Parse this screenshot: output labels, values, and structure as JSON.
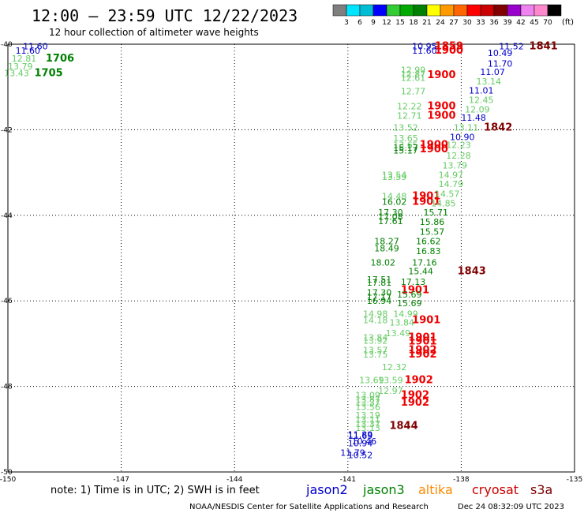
{
  "header": {
    "title": "12:00 — 23:59 UTC 12/22/2023",
    "subtitle": "12 hour collection of altimeter wave heights"
  },
  "scale": {
    "unit": "(ft)",
    "ticks": [
      "3",
      "6",
      "9",
      "12",
      "15",
      "18",
      "21",
      "24",
      "27",
      "30",
      "33",
      "36",
      "39",
      "42",
      "45",
      "70"
    ],
    "colors": [
      "#7f7f7f",
      "#00e5ff",
      "#00bcd4",
      "#0000ff",
      "#33cc33",
      "#00aa00",
      "#008000",
      "#ffff00",
      "#ff9900",
      "#ff6600",
      "#ff0000",
      "#cc0000",
      "#800000",
      "#9900cc",
      "#ee82ee",
      "#ff88cc",
      "#000000"
    ]
  },
  "footer": {
    "note": "note: 1) Time is in UTC; 2) SWH is in feet",
    "credit": "NOAA/NESDIS Center for Satellite Applications and Research",
    "timestamp": "Dec 24 08:32:09 UTC 2023"
  },
  "legend": [
    {
      "name": "jason2",
      "color": "#0000cc"
    },
    {
      "name": "jason3",
      "color": "#008000"
    },
    {
      "name": "altika",
      "color": "#ff8800"
    },
    {
      "name": "cryosat",
      "color": "#cc0000"
    },
    {
      "name": "s3a",
      "color": "#800000"
    }
  ],
  "chart_data": {
    "type": "scatter",
    "xlim": [
      -150,
      -135
    ],
    "ylim": [
      -50,
      -40
    ],
    "x_ticks": [
      "-150",
      "-147",
      "-144",
      "-141",
      "-138",
      "-135"
    ],
    "y_ticks": [
      "-40",
      "-42",
      "-44",
      "-46",
      "-48",
      "-50"
    ],
    "grid": true,
    "labels": [
      {
        "x": -149.6,
        "y": -40.05,
        "text": "11.60",
        "color": "#0000cc",
        "size": "s"
      },
      {
        "x": -149.8,
        "y": -40.15,
        "text": "11.60",
        "color": "#0000cc",
        "size": "s"
      },
      {
        "x": -149.9,
        "y": -40.33,
        "text": "12.81",
        "color": "#66cc66",
        "size": "s"
      },
      {
        "x": -149.0,
        "y": -40.33,
        "text": "1706",
        "color": "#008000",
        "size": "b"
      },
      {
        "x": -150.0,
        "y": -40.52,
        "text": "13.79",
        "color": "#66cc66",
        "size": "s"
      },
      {
        "x": -150.1,
        "y": -40.67,
        "text": "13.43",
        "color": "#66cc66",
        "size": "s"
      },
      {
        "x": -149.3,
        "y": -40.67,
        "text": "1705",
        "color": "#008000",
        "size": "b"
      },
      {
        "x": -139.3,
        "y": -40.05,
        "text": "10.95",
        "color": "#0000cc",
        "size": "s"
      },
      {
        "x": -138.7,
        "y": -40.05,
        "text": "1859",
        "color": "#ee0000",
        "size": "b"
      },
      {
        "x": -139.3,
        "y": -40.15,
        "text": "11.60",
        "color": "#0000cc",
        "size": "s"
      },
      {
        "x": -138.7,
        "y": -40.15,
        "text": "1900",
        "color": "#ee0000",
        "size": "b"
      },
      {
        "x": -137.0,
        "y": -40.05,
        "text": "11.52",
        "color": "#0000cc",
        "size": "s"
      },
      {
        "x": -136.2,
        "y": -40.05,
        "text": "1841",
        "color": "#800000",
        "size": "b"
      },
      {
        "x": -137.3,
        "y": -40.2,
        "text": "10.49",
        "color": "#0000cc",
        "size": "s"
      },
      {
        "x": -137.3,
        "y": -40.45,
        "text": "11.70",
        "color": "#0000cc",
        "size": "s"
      },
      {
        "x": -137.5,
        "y": -40.65,
        "text": "11.07",
        "color": "#0000cc",
        "size": "s"
      },
      {
        "x": -139.6,
        "y": -40.6,
        "text": "12.99",
        "color": "#66cc66",
        "size": "s"
      },
      {
        "x": -139.6,
        "y": -40.7,
        "text": "12.87",
        "color": "#66cc66",
        "size": "s"
      },
      {
        "x": -139.6,
        "y": -40.78,
        "text": "12.61",
        "color": "#66cc66",
        "size": "s"
      },
      {
        "x": -138.9,
        "y": -40.72,
        "text": "1900",
        "color": "#ee0000",
        "size": "b"
      },
      {
        "x": -137.6,
        "y": -40.87,
        "text": "13.14",
        "color": "#66cc66",
        "size": "s"
      },
      {
        "x": -139.6,
        "y": -41.1,
        "text": "12.77",
        "color": "#66cc66",
        "size": "s"
      },
      {
        "x": -137.8,
        "y": -41.08,
        "text": "11.01",
        "color": "#0000cc",
        "size": "s"
      },
      {
        "x": -137.8,
        "y": -41.3,
        "text": "12.45",
        "color": "#66cc66",
        "size": "s"
      },
      {
        "x": -139.7,
        "y": -41.45,
        "text": "12.22",
        "color": "#66cc66",
        "size": "s"
      },
      {
        "x": -138.9,
        "y": -41.45,
        "text": "1900",
        "color": "#ee0000",
        "size": "b"
      },
      {
        "x": -137.9,
        "y": -41.52,
        "text": "12.09",
        "color": "#66cc66",
        "size": "s"
      },
      {
        "x": -139.7,
        "y": -41.67,
        "text": "12.71",
        "color": "#66cc66",
        "size": "s"
      },
      {
        "x": -138.9,
        "y": -41.67,
        "text": "1900",
        "color": "#ee0000",
        "size": "b"
      },
      {
        "x": -138.0,
        "y": -41.72,
        "text": "11.48",
        "color": "#0000cc",
        "size": "s"
      },
      {
        "x": -139.8,
        "y": -41.95,
        "text": "13.52",
        "color": "#66cc66",
        "size": "s"
      },
      {
        "x": -138.2,
        "y": -41.95,
        "text": "13.11",
        "color": "#66cc66",
        "size": "s"
      },
      {
        "x": -137.4,
        "y": -41.95,
        "text": "1842",
        "color": "#800000",
        "size": "b"
      },
      {
        "x": -138.3,
        "y": -42.17,
        "text": "10.90",
        "color": "#0000cc",
        "size": "s"
      },
      {
        "x": -139.8,
        "y": -42.2,
        "text": "13.65",
        "color": "#66cc66",
        "size": "s"
      },
      {
        "x": -139.8,
        "y": -42.35,
        "text": "13.65",
        "color": "#66cc66",
        "size": "s"
      },
      {
        "x": -139.8,
        "y": -42.42,
        "text": "15.17",
        "color": "#008000",
        "size": "s"
      },
      {
        "x": -139.8,
        "y": -42.48,
        "text": "15.17",
        "color": "#008000",
        "size": "s"
      },
      {
        "x": -139.1,
        "y": -42.35,
        "text": "1900",
        "color": "#ee0000",
        "size": "b"
      },
      {
        "x": -139.1,
        "y": -42.45,
        "text": "1900",
        "color": "#ee0000",
        "size": "b"
      },
      {
        "x": -138.4,
        "y": -42.35,
        "text": "12.23",
        "color": "#66cc66",
        "size": "s"
      },
      {
        "x": -138.4,
        "y": -42.6,
        "text": "12.28",
        "color": "#66cc66",
        "size": "s"
      },
      {
        "x": -138.5,
        "y": -42.83,
        "text": "13.79",
        "color": "#66cc66",
        "size": "s"
      },
      {
        "x": -140.1,
        "y": -43.05,
        "text": "13.54",
        "color": "#66cc66",
        "size": "s"
      },
      {
        "x": -140.1,
        "y": -43.1,
        "text": "13.59",
        "color": "#66cc66",
        "size": "s"
      },
      {
        "x": -138.6,
        "y": -43.05,
        "text": "14.97",
        "color": "#66cc66",
        "size": "s"
      },
      {
        "x": -138.6,
        "y": -43.27,
        "text": "14.79",
        "color": "#66cc66",
        "size": "s"
      },
      {
        "x": -140.1,
        "y": -43.55,
        "text": "14.48",
        "color": "#66cc66",
        "size": "s"
      },
      {
        "x": -139.3,
        "y": -43.55,
        "text": "1901",
        "color": "#ee0000",
        "size": "b"
      },
      {
        "x": -138.7,
        "y": -43.5,
        "text": "14.57",
        "color": "#66cc66",
        "size": "s"
      },
      {
        "x": -140.1,
        "y": -43.68,
        "text": "16.02",
        "color": "#008000",
        "size": "s"
      },
      {
        "x": -139.3,
        "y": -43.68,
        "text": "1901",
        "color": "#ee0000",
        "size": "b"
      },
      {
        "x": -138.8,
        "y": -43.72,
        "text": "14.85",
        "color": "#66cc66",
        "size": "s"
      },
      {
        "x": -140.2,
        "y": -43.93,
        "text": "17.30",
        "color": "#008000",
        "size": "s"
      },
      {
        "x": -139.0,
        "y": -43.93,
        "text": "15.71",
        "color": "#008000",
        "size": "s"
      },
      {
        "x": -140.2,
        "y": -44.03,
        "text": "17.08",
        "color": "#008000",
        "size": "s"
      },
      {
        "x": -140.2,
        "y": -44.13,
        "text": "17.61",
        "color": "#008000",
        "size": "s"
      },
      {
        "x": -139.1,
        "y": -44.15,
        "text": "15.86",
        "color": "#008000",
        "size": "s"
      },
      {
        "x": -139.1,
        "y": -44.38,
        "text": "15.57",
        "color": "#008000",
        "size": "s"
      },
      {
        "x": -140.3,
        "y": -44.6,
        "text": "18.27",
        "color": "#008000",
        "size": "s"
      },
      {
        "x": -139.2,
        "y": -44.6,
        "text": "16.62",
        "color": "#008000",
        "size": "s"
      },
      {
        "x": -140.3,
        "y": -44.77,
        "text": "18.49",
        "color": "#008000",
        "size": "s"
      },
      {
        "x": -139.2,
        "y": -44.83,
        "text": "16.83",
        "color": "#008000",
        "size": "s"
      },
      {
        "x": -140.4,
        "y": -45.1,
        "text": "18.02",
        "color": "#008000",
        "size": "s"
      },
      {
        "x": -139.3,
        "y": -45.1,
        "text": "17.16",
        "color": "#008000",
        "size": "s"
      },
      {
        "x": -139.4,
        "y": -45.3,
        "text": "15.44",
        "color": "#008000",
        "size": "s"
      },
      {
        "x": -138.1,
        "y": -45.3,
        "text": "1843",
        "color": "#800000",
        "size": "b"
      },
      {
        "x": -140.5,
        "y": -45.5,
        "text": "17.51",
        "color": "#008000",
        "size": "s"
      },
      {
        "x": -140.5,
        "y": -45.57,
        "text": "17.81",
        "color": "#008000",
        "size": "s"
      },
      {
        "x": -139.6,
        "y": -45.55,
        "text": "17.13",
        "color": "#008000",
        "size": "s"
      },
      {
        "x": -140.5,
        "y": -45.8,
        "text": "17.30",
        "color": "#008000",
        "size": "s"
      },
      {
        "x": -139.6,
        "y": -45.75,
        "text": "1901",
        "color": "#ee0000",
        "size": "b"
      },
      {
        "x": -140.5,
        "y": -45.9,
        "text": "17.17",
        "color": "#008000",
        "size": "s"
      },
      {
        "x": -140.5,
        "y": -46.0,
        "text": "16.94",
        "color": "#008000",
        "size": "s"
      },
      {
        "x": -139.7,
        "y": -45.85,
        "text": "15.69",
        "color": "#008000",
        "size": "s"
      },
      {
        "x": -139.7,
        "y": -46.05,
        "text": "15.69",
        "color": "#008000",
        "size": "s"
      },
      {
        "x": -140.6,
        "y": -46.3,
        "text": "14.98",
        "color": "#66cc66",
        "size": "s"
      },
      {
        "x": -139.8,
        "y": -46.3,
        "text": "14.99",
        "color": "#66cc66",
        "size": "s"
      },
      {
        "x": -140.6,
        "y": -46.45,
        "text": "14.18",
        "color": "#66cc66",
        "size": "s"
      },
      {
        "x": -139.9,
        "y": -46.5,
        "text": "13.84",
        "color": "#66cc66",
        "size": "s"
      },
      {
        "x": -139.3,
        "y": -46.45,
        "text": "1901",
        "color": "#ee0000",
        "size": "b"
      },
      {
        "x": -140.0,
        "y": -46.75,
        "text": "13.49",
        "color": "#66cc66",
        "size": "s"
      },
      {
        "x": -140.6,
        "y": -46.85,
        "text": "13.84",
        "color": "#66cc66",
        "size": "s"
      },
      {
        "x": -140.6,
        "y": -46.93,
        "text": "13.92",
        "color": "#66cc66",
        "size": "s"
      },
      {
        "x": -139.4,
        "y": -46.85,
        "text": "1901",
        "color": "#ee0000",
        "size": "b"
      },
      {
        "x": -139.4,
        "y": -46.95,
        "text": "1901",
        "color": "#ee0000",
        "size": "b"
      },
      {
        "x": -140.6,
        "y": -47.15,
        "text": "13.57",
        "color": "#66cc66",
        "size": "s"
      },
      {
        "x": -139.4,
        "y": -47.15,
        "text": "1902",
        "color": "#ee0000",
        "size": "b"
      },
      {
        "x": -140.6,
        "y": -47.25,
        "text": "13.75",
        "color": "#66cc66",
        "size": "s"
      },
      {
        "x": -139.4,
        "y": -47.25,
        "text": "1902",
        "color": "#ee0000",
        "size": "b"
      },
      {
        "x": -140.1,
        "y": -47.55,
        "text": "12.32",
        "color": "#66cc66",
        "size": "s"
      },
      {
        "x": -140.7,
        "y": -47.85,
        "text": "13.69",
        "color": "#66cc66",
        "size": "s"
      },
      {
        "x": -140.2,
        "y": -47.85,
        "text": "13.59",
        "color": "#66cc66",
        "size": "s"
      },
      {
        "x": -139.5,
        "y": -47.85,
        "text": "1902",
        "color": "#ee0000",
        "size": "b"
      },
      {
        "x": -140.2,
        "y": -48.1,
        "text": "12.97",
        "color": "#66cc66",
        "size": "s"
      },
      {
        "x": -140.8,
        "y": -48.2,
        "text": "13.09",
        "color": "#66cc66",
        "size": "s"
      },
      {
        "x": -139.6,
        "y": -48.2,
        "text": "1902",
        "color": "#ee0000",
        "size": "b"
      },
      {
        "x": -140.8,
        "y": -48.3,
        "text": "13.87",
        "color": "#66cc66",
        "size": "s"
      },
      {
        "x": -140.8,
        "y": -48.38,
        "text": "13.37",
        "color": "#66cc66",
        "size": "s"
      },
      {
        "x": -139.6,
        "y": -48.38,
        "text": "1902",
        "color": "#ee0000",
        "size": "b"
      },
      {
        "x": -140.8,
        "y": -48.48,
        "text": "13.56",
        "color": "#66cc66",
        "size": "s"
      },
      {
        "x": -140.8,
        "y": -48.67,
        "text": "13.19",
        "color": "#66cc66",
        "size": "s"
      },
      {
        "x": -140.8,
        "y": -48.77,
        "text": "13.11",
        "color": "#66cc66",
        "size": "s"
      },
      {
        "x": -140.8,
        "y": -48.87,
        "text": "13.37",
        "color": "#66cc66",
        "size": "s"
      },
      {
        "x": -140.8,
        "y": -48.97,
        "text": "13.13",
        "color": "#66cc66",
        "size": "s"
      },
      {
        "x": -139.9,
        "y": -48.92,
        "text": "1844",
        "color": "#800000",
        "size": "b"
      },
      {
        "x": -141.0,
        "y": -49.12,
        "text": "11.89",
        "color": "#0000cc",
        "size": "s"
      },
      {
        "x": -141.0,
        "y": -49.15,
        "text": "11.69",
        "color": "#0000cc",
        "size": "s"
      },
      {
        "x": -140.9,
        "y": -49.28,
        "text": "10.46",
        "color": "#0000cc",
        "size": "s"
      },
      {
        "x": -141.0,
        "y": -49.33,
        "text": "10.94",
        "color": "#0000cc",
        "size": "s"
      },
      {
        "x": -141.2,
        "y": -49.55,
        "text": "11.79",
        "color": "#0000cc",
        "size": "s"
      },
      {
        "x": -141.0,
        "y": -49.6,
        "text": "10.52",
        "color": "#0000cc",
        "size": "s"
      }
    ]
  }
}
